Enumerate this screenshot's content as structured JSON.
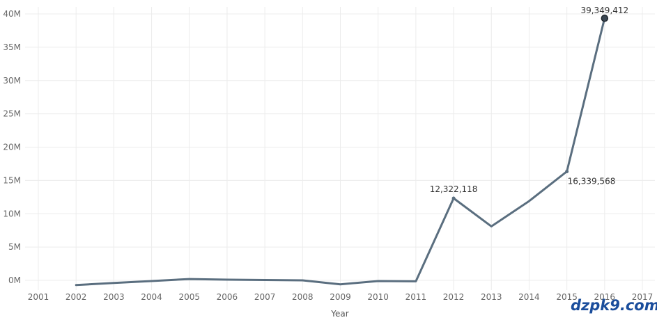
{
  "chart_data": {
    "type": "line",
    "xlabel": "Year",
    "ylabel": "",
    "x": [
      2002,
      2003,
      2004,
      2005,
      2006,
      2007,
      2008,
      2009,
      2010,
      2011,
      2012,
      2013,
      2014,
      2015,
      2016
    ],
    "series": [
      {
        "values": [
          -700000,
          -400000,
          -100000,
          200000,
          100000,
          50000,
          0,
          -600000,
          -100000,
          -150000,
          12322118,
          8100000,
          11900000,
          16339568,
          39349412
        ]
      }
    ],
    "x_ticks": [
      "2001",
      "2002",
      "2003",
      "2004",
      "2005",
      "2006",
      "2007",
      "2008",
      "2009",
      "2010",
      "2011",
      "2012",
      "2013",
      "2014",
      "2015",
      "2016",
      "2017"
    ],
    "y_ticks": [
      "0M",
      "5M",
      "10M",
      "15M",
      "20M",
      "25M",
      "30M",
      "35M",
      "40M"
    ],
    "xlim": [
      2001,
      2017
    ],
    "ylim": [
      0,
      40000000
    ],
    "grid": true,
    "line_color": "#5a6e7f",
    "annotations": [
      {
        "x": 2012,
        "value": 12322118,
        "text": "12,322,118",
        "position": "above"
      },
      {
        "x": 2015,
        "value": 16339568,
        "text": "16,339,568",
        "position": "below-right"
      },
      {
        "x": 2016,
        "value": 39349412,
        "text": "39,349,412",
        "position": "above"
      }
    ]
  },
  "watermark": {
    "text": "dzpk9.com",
    "color": "#1a4d9c"
  }
}
